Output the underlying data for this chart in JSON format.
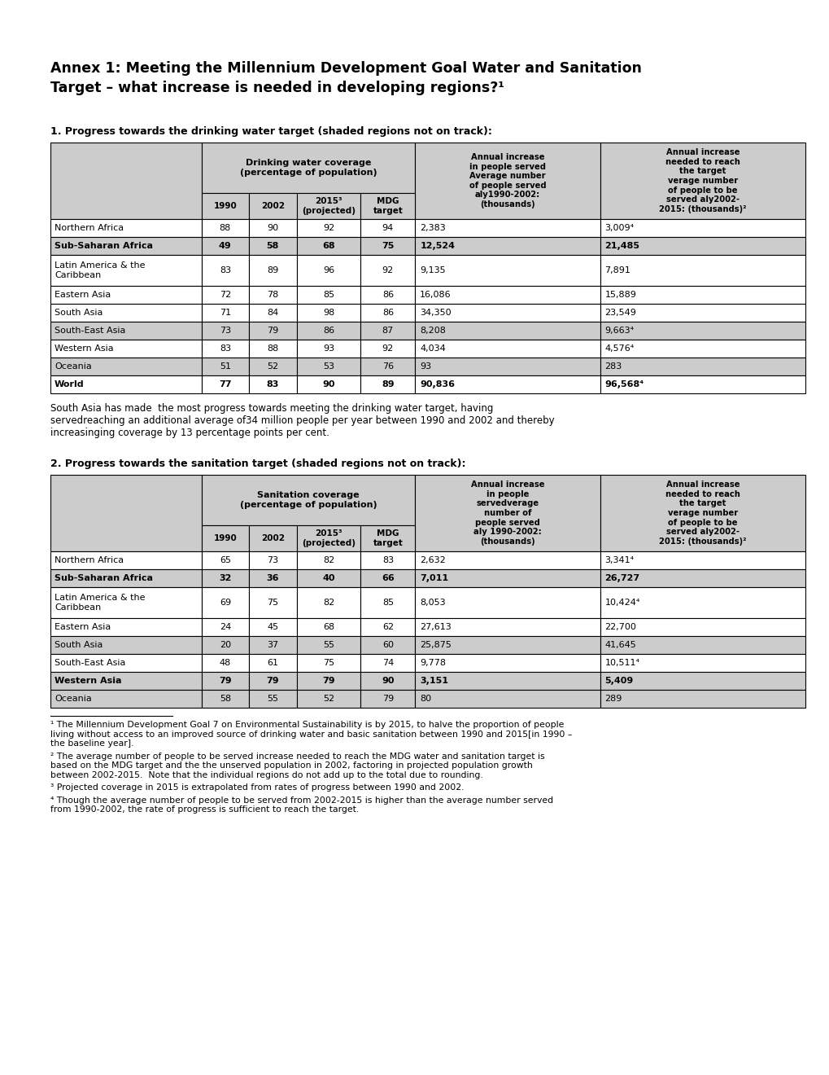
{
  "title_line1": "Annex 1: Meeting the Millennium Development Goal Water and Sanitation",
  "title_line2": "Target – what increase is needed in developing regions?¹",
  "section1_heading": "1. Progress towards the drinking water target (shaded regions not on track):",
  "section2_heading": "2. Progress towards the sanitation target (shaded regions not on track):",
  "water_table": {
    "header_group1": "Drinking water coverage\n(percentage of population)",
    "header_col5": "Annual increase\nin people served\nAverage number\nof people served\naly1990-2002:\n(thousands)",
    "header_col6": "Annual increase\nneeded to reach\nthe target\nverage number\nof people to be\nserved aly2002-\n2015: (thousands)²",
    "sub_headers": [
      "1990",
      "2002",
      "2015³\n(projected)",
      "MDG\ntarget"
    ],
    "rows": [
      {
        "region": "Northern Africa",
        "v1990": "88",
        "v2002": "90",
        "v2015": "92",
        "mdg": "94",
        "ann_inc": "2,383",
        "ann_needed": "3,009⁴",
        "shaded": false,
        "bold": false
      },
      {
        "region": "Sub-Saharan Africa",
        "v1990": "49",
        "v2002": "58",
        "v2015": "68",
        "mdg": "75",
        "ann_inc": "12,524",
        "ann_needed": "21,485",
        "shaded": true,
        "bold": true
      },
      {
        "region": "Latin America & the\nCaribbean",
        "v1990": "83",
        "v2002": "89",
        "v2015": "96",
        "mdg": "92",
        "ann_inc": "9,135",
        "ann_needed": "7,891",
        "shaded": false,
        "bold": false
      },
      {
        "region": "Eastern Asia",
        "v1990": "72",
        "v2002": "78",
        "v2015": "85",
        "mdg": "86",
        "ann_inc": "16,086",
        "ann_needed": "15,889",
        "shaded": false,
        "bold": false
      },
      {
        "region": "South Asia",
        "v1990": "71",
        "v2002": "84",
        "v2015": "98",
        "mdg": "86",
        "ann_inc": "34,350",
        "ann_needed": "23,549",
        "shaded": false,
        "bold": false
      },
      {
        "region": "South-East Asia",
        "v1990": "73",
        "v2002": "79",
        "v2015": "86",
        "mdg": "87",
        "ann_inc": "8,208",
        "ann_needed": "9,663⁴",
        "shaded": true,
        "bold": false
      },
      {
        "region": "Western Asia",
        "v1990": "83",
        "v2002": "88",
        "v2015": "93",
        "mdg": "92",
        "ann_inc": "4,034",
        "ann_needed": "4,576⁴",
        "shaded": false,
        "bold": false
      },
      {
        "region": "Oceania",
        "v1990": "51",
        "v2002": "52",
        "v2015": "53",
        "mdg": "76",
        "ann_inc": "93",
        "ann_needed": "283",
        "shaded": true,
        "bold": false
      },
      {
        "region": "World",
        "v1990": "77",
        "v2002": "83",
        "v2015": "90",
        "mdg": "89",
        "ann_inc": "90,836",
        "ann_needed": "96,568⁴",
        "shaded": false,
        "bold": true
      }
    ]
  },
  "water_note": "South Asia has made  the most progress towards meeting the drinking water target, having\nservedreaching an additional average of34 million people per year between 1990 and 2002 and thereby\nincreasinging coverage by 13 percentage points per cent.",
  "sanitation_table": {
    "header_group1": "Sanitation coverage\n(percentage of population)",
    "header_col5": "Annual increase\nin people\nservedverage\nnumber of\npeople served\naly 1990-2002:\n(thousands)",
    "header_col6": "Annual increase\nneeded to reach\nthe target\nverage number\nof people to be\nserved aly2002-\n2015: (thousands)²",
    "sub_headers": [
      "1990",
      "2002",
      "2015³\n(projected)",
      "MDG\ntarget"
    ],
    "rows": [
      {
        "region": "Northern Africa",
        "v1990": "65",
        "v2002": "73",
        "v2015": "82",
        "mdg": "83",
        "ann_inc": "2,632",
        "ann_needed": "3,341⁴",
        "shaded": false,
        "bold": false
      },
      {
        "region": "Sub-Saharan Africa",
        "v1990": "32",
        "v2002": "36",
        "v2015": "40",
        "mdg": "66",
        "ann_inc": "7,011",
        "ann_needed": "26,727",
        "shaded": true,
        "bold": true
      },
      {
        "region": "Latin America & the\nCaribbean",
        "v1990": "69",
        "v2002": "75",
        "v2015": "82",
        "mdg": "85",
        "ann_inc": "8,053",
        "ann_needed": "10,424⁴",
        "shaded": false,
        "bold": false
      },
      {
        "region": "Eastern Asia",
        "v1990": "24",
        "v2002": "45",
        "v2015": "68",
        "mdg": "62",
        "ann_inc": "27,613",
        "ann_needed": "22,700",
        "shaded": false,
        "bold": false
      },
      {
        "region": "South Asia",
        "v1990": "20",
        "v2002": "37",
        "v2015": "55",
        "mdg": "60",
        "ann_inc": "25,875",
        "ann_needed": "41,645",
        "shaded": true,
        "bold": false
      },
      {
        "region": "South-East Asia",
        "v1990": "48",
        "v2002": "61",
        "v2015": "75",
        "mdg": "74",
        "ann_inc": "9,778",
        "ann_needed": "10,511⁴",
        "shaded": false,
        "bold": false
      },
      {
        "region": "Western Asia",
        "v1990": "79",
        "v2002": "79",
        "v2015": "79",
        "mdg": "90",
        "ann_inc": "3,151",
        "ann_needed": "5,409",
        "shaded": true,
        "bold": true
      },
      {
        "region": "Oceania",
        "v1990": "58",
        "v2002": "55",
        "v2015": "52",
        "mdg": "79",
        "ann_inc": "80",
        "ann_needed": "289",
        "shaded": true,
        "bold": false
      }
    ]
  },
  "footnotes": [
    "¹ The Millennium Development Goal 7 on Environmental Sustainability is by 2015, to halve the proportion of people\nliving without access to an improved source of drinking water and basic sanitation between 1990 and 2015[in 1990 –\nthe baseline year].",
    "² The average number of people to be served increase needed to reach the MDG water and sanitation target is\nbased on the MDG target and the the unserved population in 2002, factoring in projected population growth\nbetween 2002-2015.  Note that the individual regions do not add up to the total due to rounding.",
    "³ Projected coverage in 2015 is extrapolated from rates of progress between 1990 and 2002.",
    "⁴ Though the average number of people to be served from 2002-2015 is higher than the average number served\nfrom 1990-2002, the rate of progress is sufficient to reach the target."
  ],
  "shaded_color": "#cccccc",
  "white_color": "#ffffff",
  "header_bg_color": "#cccccc",
  "border_color": "#000000"
}
